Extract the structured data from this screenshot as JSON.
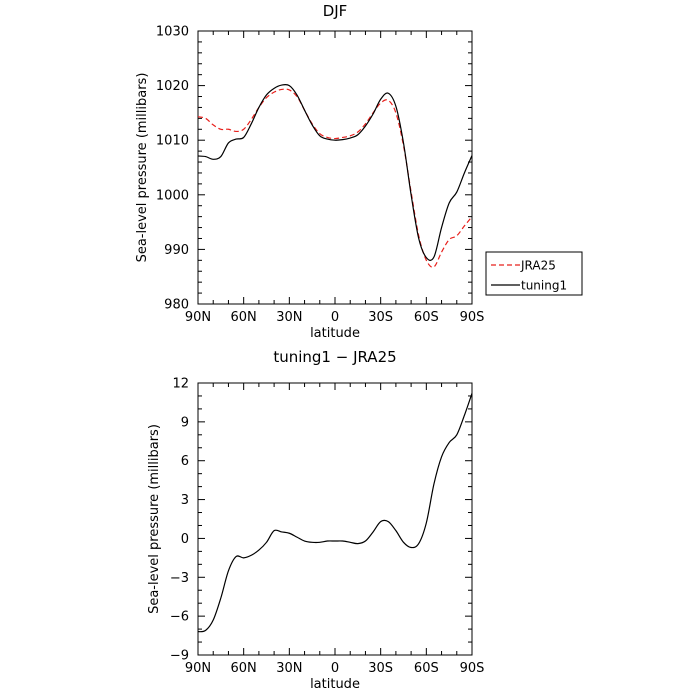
{
  "chart_data": [
    {
      "type": "line",
      "title": "DJF",
      "xlabel": "latitude",
      "ylabel": "Sea-level pressure (millibars)",
      "xlim": [
        90,
        -90
      ],
      "ylim": [
        980,
        1030
      ],
      "x_ticks": [
        90,
        60,
        30,
        0,
        -30,
        -60,
        -90
      ],
      "x_tick_labels": [
        "90N",
        "60N",
        "30N",
        "0",
        "30S",
        "60S",
        "90S"
      ],
      "y_ticks": [
        980,
        990,
        1000,
        1010,
        1020,
        1030
      ],
      "y_tick_labels": [
        "980",
        "990",
        "1000",
        "1010",
        "1020",
        "1030"
      ],
      "grid": false,
      "legend": "right",
      "x": [
        90,
        85,
        80,
        75,
        70,
        65,
        60,
        55,
        50,
        45,
        40,
        35,
        30,
        25,
        20,
        15,
        10,
        5,
        0,
        -5,
        -10,
        -15,
        -20,
        -25,
        -30,
        -35,
        -40,
        -45,
        -50,
        -55,
        -60,
        -65,
        -70,
        -75,
        -80,
        -85,
        -90
      ],
      "series": [
        {
          "name": "JRA25",
          "color": "#e8201c",
          "dash": "dashed",
          "values": [
            1014.3,
            1014.0,
            1012.8,
            1012.0,
            1012.0,
            1011.6,
            1012.0,
            1013.8,
            1016.0,
            1017.8,
            1018.8,
            1019.3,
            1019.2,
            1018.0,
            1015.5,
            1013.0,
            1011.2,
            1010.5,
            1010.3,
            1010.5,
            1010.8,
            1011.5,
            1013.0,
            1015.0,
            1016.8,
            1017.3,
            1015.0,
            1009.0,
            1000.5,
            992.5,
            988.0,
            986.8,
            989.5,
            991.8,
            992.5,
            994.3,
            996.0
          ]
        },
        {
          "name": "tuning1",
          "color": "#000000",
          "dash": "solid",
          "values": [
            1007.1,
            1007.0,
            1006.5,
            1007.0,
            1009.5,
            1010.2,
            1010.5,
            1013.0,
            1016.0,
            1018.3,
            1019.5,
            1020.1,
            1020.0,
            1018.3,
            1015.5,
            1012.8,
            1010.8,
            1010.2,
            1010.0,
            1010.1,
            1010.4,
            1011.0,
            1012.6,
            1014.8,
            1017.5,
            1018.6,
            1016.2,
            1009.5,
            1000.0,
            992.0,
            988.5,
            988.6,
            994.0,
            998.5,
            1000.5,
            1004.0,
            1007.2
          ]
        }
      ]
    },
    {
      "type": "line",
      "title": "tuning1 − JRA25",
      "xlabel": "latitude",
      "ylabel": "Sea-level pressure (millibars)",
      "xlim": [
        90,
        -90
      ],
      "ylim": [
        -9,
        12
      ],
      "x_ticks": [
        90,
        60,
        30,
        0,
        -30,
        -60,
        -90
      ],
      "x_tick_labels": [
        "90N",
        "60N",
        "30N",
        "0",
        "30S",
        "60S",
        "90S"
      ],
      "y_ticks": [
        -9,
        -6,
        -3,
        0,
        3,
        6,
        9,
        12
      ],
      "y_tick_labels": [
        "−9",
        "−6",
        "−3",
        "0",
        "3",
        "6",
        "9",
        "12"
      ],
      "grid": false,
      "x": [
        90,
        85,
        80,
        75,
        70,
        65,
        60,
        55,
        50,
        45,
        40,
        35,
        30,
        25,
        20,
        15,
        10,
        5,
        0,
        -5,
        -10,
        -15,
        -20,
        -25,
        -30,
        -35,
        -40,
        -45,
        -50,
        -55,
        -60,
        -65,
        -70,
        -75,
        -80,
        -85,
        -90
      ],
      "series": [
        {
          "color": "#000000",
          "dash": "solid",
          "values": [
            -7.2,
            -7.1,
            -6.3,
            -4.6,
            -2.5,
            -1.4,
            -1.5,
            -1.3,
            -0.9,
            -0.3,
            0.6,
            0.5,
            0.4,
            0.1,
            -0.2,
            -0.3,
            -0.3,
            -0.2,
            -0.2,
            -0.2,
            -0.3,
            -0.4,
            -0.2,
            0.5,
            1.3,
            1.3,
            0.6,
            -0.3,
            -0.7,
            -0.4,
            1.2,
            4.2,
            6.3,
            7.4,
            8.0,
            9.5,
            11.2
          ]
        }
      ]
    }
  ]
}
